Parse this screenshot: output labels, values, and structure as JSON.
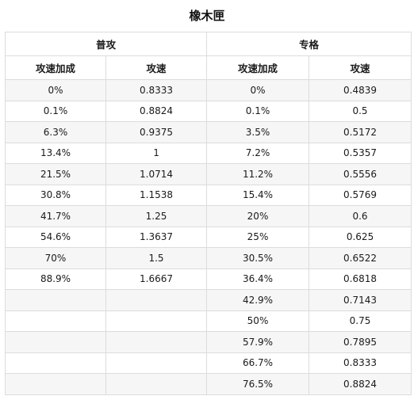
{
  "title": "橡木匣",
  "groups": {
    "left": "普攻",
    "right": "专格"
  },
  "columns": {
    "left_bonus": "攻速加成",
    "left_speed": "攻速",
    "right_bonus": "攻速加成",
    "right_speed": "攻速"
  },
  "rows": [
    {
      "lb": "0%",
      "ls": "0.8333",
      "rb": "0%",
      "rs": "0.4839"
    },
    {
      "lb": "0.1%",
      "ls": "0.8824",
      "rb": "0.1%",
      "rs": "0.5"
    },
    {
      "lb": "6.3%",
      "ls": "0.9375",
      "rb": "3.5%",
      "rs": "0.5172"
    },
    {
      "lb": "13.4%",
      "ls": "1",
      "rb": "7.2%",
      "rs": "0.5357"
    },
    {
      "lb": "21.5%",
      "ls": "1.0714",
      "rb": "11.2%",
      "rs": "0.5556"
    },
    {
      "lb": "30.8%",
      "ls": "1.1538",
      "rb": "15.4%",
      "rs": "0.5769"
    },
    {
      "lb": "41.7%",
      "ls": "1.25",
      "rb": "20%",
      "rs": "0.6"
    },
    {
      "lb": "54.6%",
      "ls": "1.3637",
      "rb": "25%",
      "rs": "0.625"
    },
    {
      "lb": "70%",
      "ls": "1.5",
      "rb": "30.5%",
      "rs": "0.6522"
    },
    {
      "lb": "88.9%",
      "ls": "1.6667",
      "rb": "36.4%",
      "rs": "0.6818"
    },
    {
      "lb": "",
      "ls": "",
      "rb": "42.9%",
      "rs": "0.7143"
    },
    {
      "lb": "",
      "ls": "",
      "rb": "50%",
      "rs": "0.75"
    },
    {
      "lb": "",
      "ls": "",
      "rb": "57.9%",
      "rs": "0.7895"
    },
    {
      "lb": "",
      "ls": "",
      "rb": "66.7%",
      "rs": "0.8333"
    },
    {
      "lb": "",
      "ls": "",
      "rb": "76.5%",
      "rs": "0.8824"
    }
  ]
}
